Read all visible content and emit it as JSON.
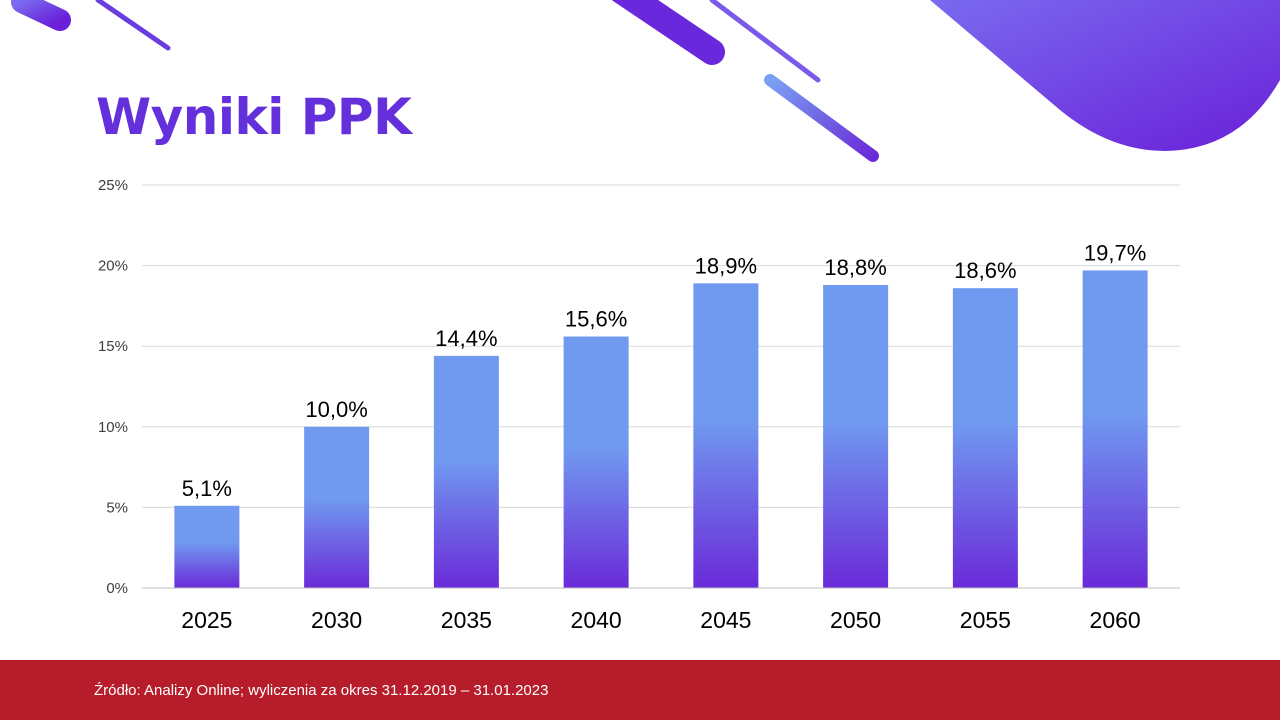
{
  "title": "Wyniki PPK",
  "footer": {
    "source": "Źródło: Analizy Online; wyliczenia za okres 31.12.2019 – 31.01.2023"
  },
  "colors": {
    "accent": "#6330dc",
    "bar_top": "#7099f0",
    "bar_bottom": "#6a2ad8",
    "footer_bg": "#b71c2a",
    "grid": "#d9d9d9"
  },
  "chart_data": {
    "type": "bar",
    "title": "",
    "xlabel": "",
    "ylabel": "",
    "categories": [
      "2025",
      "2030",
      "2035",
      "2040",
      "2045",
      "2050",
      "2055",
      "2060"
    ],
    "values": [
      5.1,
      10.0,
      14.4,
      15.6,
      18.9,
      18.8,
      18.6,
      19.7
    ],
    "data_labels": [
      "5,1%",
      "10,0%",
      "14,4%",
      "15,6%",
      "18,9%",
      "18,8%",
      "18,6%",
      "19,7%"
    ],
    "ylim": [
      0,
      25
    ],
    "yticks": [
      0,
      5,
      10,
      15,
      20,
      25
    ],
    "ytick_labels": [
      "0%",
      "5%",
      "10%",
      "15%",
      "20%",
      "25%"
    ],
    "grid": true,
    "legend": "none"
  }
}
